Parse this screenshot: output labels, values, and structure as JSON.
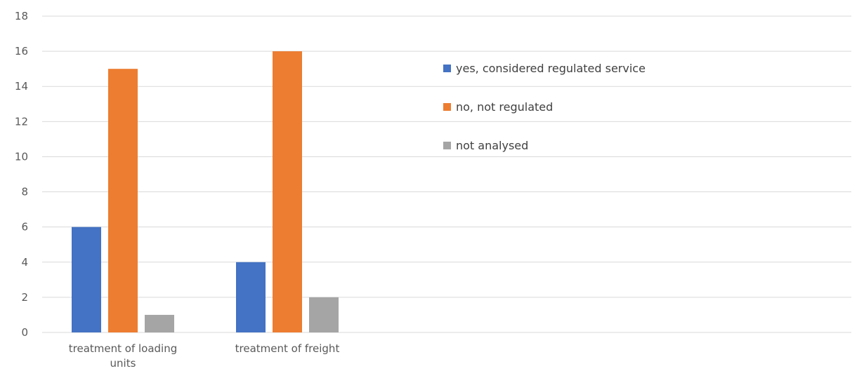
{
  "chart_data": {
    "type": "bar",
    "categories": [
      "treatment of loading units",
      "treatment of freight"
    ],
    "series": [
      {
        "name": "yes, considered regulated service",
        "values": [
          6,
          4
        ],
        "color": "#4472c4"
      },
      {
        "name": "no, not regulated",
        "values": [
          15,
          16
        ],
        "color": "#ed7d31"
      },
      {
        "name": "not analysed",
        "values": [
          1,
          2
        ],
        "color": "#a5a5a5"
      }
    ],
    "title": "",
    "xlabel": "",
    "ylabel": "",
    "ylim": [
      0,
      18
    ],
    "yticks": [
      0,
      2,
      4,
      6,
      8,
      10,
      12,
      14,
      16,
      18
    ],
    "grid": true,
    "legend": "right"
  }
}
